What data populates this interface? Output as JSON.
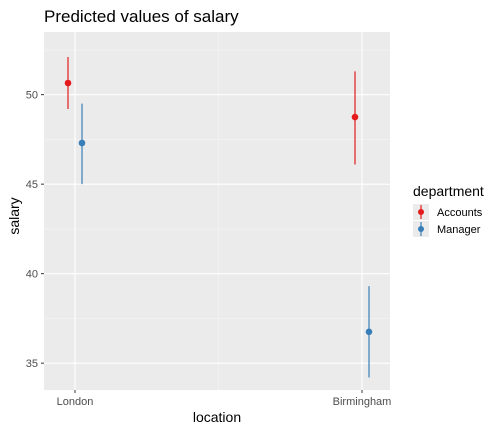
{
  "chart_data": {
    "type": "scatter",
    "title": "Predicted values of salary",
    "xlabel": "location",
    "ylabel": "salary",
    "categories": [
      "London",
      "Birmingham"
    ],
    "ylim": [
      33.5,
      53.5
    ],
    "yticks": [
      35,
      40,
      45,
      50
    ],
    "grid": true,
    "legend": {
      "title": "department",
      "placement": "right"
    },
    "series": [
      {
        "name": "Accounts",
        "color": "#e41a1c",
        "points": [
          {
            "category": "London",
            "y": 50.65,
            "ci_low": 49.2,
            "ci_high": 52.1
          },
          {
            "category": "Birmingham",
            "y": 48.75,
            "ci_low": 46.1,
            "ci_high": 51.3
          }
        ]
      },
      {
        "name": "Manager",
        "color": "#377eb8",
        "points": [
          {
            "category": "London",
            "y": 47.3,
            "ci_low": 45.0,
            "ci_high": 49.5
          },
          {
            "category": "Birmingham",
            "y": 36.75,
            "ci_low": 34.2,
            "ci_high": 39.3
          }
        ]
      }
    ]
  }
}
